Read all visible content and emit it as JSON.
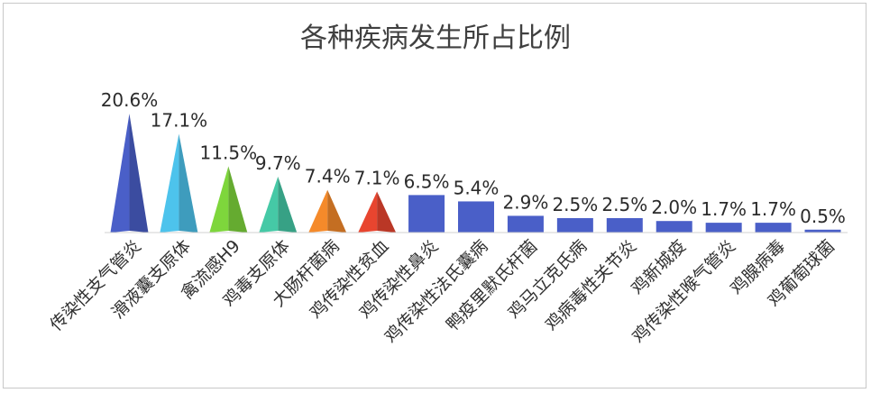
{
  "chart_data": {
    "type": "bar",
    "title": "各种疾病发生所占比例",
    "categories": [
      "传染性支气管炎",
      "滑液囊支原体",
      "禽流感H9",
      "鸡毒支原体",
      "大肠杆菌病",
      "鸡传染性贫血",
      "鸡传染性鼻炎",
      "鸡传染性法氏囊病",
      "鸭疫里默氏杆菌",
      "鸡马立克氏病",
      "鸡病毒性关节炎",
      "鸡新城疫",
      "鸡传染性喉气管炎",
      "鸡腺病毒",
      "鸡葡萄球菌"
    ],
    "values": [
      20.6,
      17.1,
      11.5,
      9.7,
      7.4,
      7.1,
      6.5,
      5.4,
      2.9,
      2.5,
      2.5,
      2.0,
      1.7,
      1.7,
      0.5
    ],
    "labels": [
      "20.6%",
      "17.1%",
      "11.5%",
      "9.7%",
      "7.4%",
      "7.1%",
      "6.5%",
      "5.4%",
      "2.9%",
      "2.5%",
      "2.5%",
      "2.0%",
      "1.7%",
      "1.7%",
      "0.5%"
    ],
    "mark_shapes": [
      "pyramid",
      "pyramid",
      "pyramid",
      "pyramid",
      "pyramid",
      "pyramid",
      "bar",
      "bar",
      "bar",
      "bar",
      "bar",
      "bar",
      "bar",
      "bar",
      "bar"
    ],
    "colors": [
      "#4a5fc8",
      "#4dc3ec",
      "#7ed63c",
      "#45c9a6",
      "#f58a2a",
      "#e8452f",
      "#4a5fc8",
      "#4a5fc8",
      "#4a5fc8",
      "#4a5fc8",
      "#4a5fc8",
      "#4a5fc8",
      "#4a5fc8",
      "#4a5fc8",
      "#4a5fc8"
    ],
    "ylim": [
      0,
      22
    ],
    "xlabel": "",
    "ylabel": "",
    "grid": false,
    "legend": "none"
  }
}
